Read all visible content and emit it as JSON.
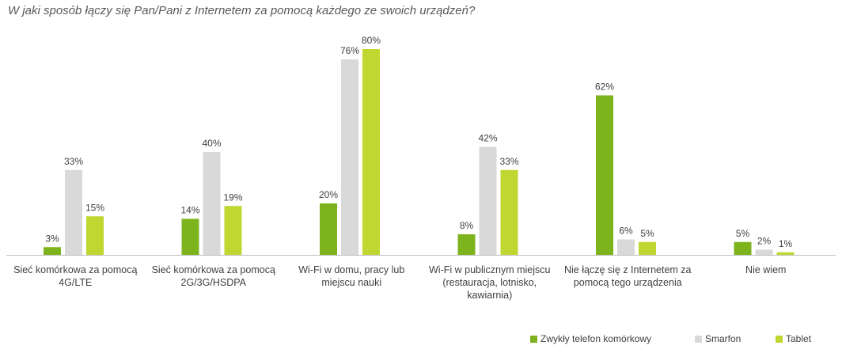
{
  "chart_data": {
    "type": "bar",
    "title": "W jaki sposób łączy się Pan/Pani z Internetem za pomocą każdego ze swoich urządzeń?",
    "categories": [
      [
        "Sieć komórkowa za pomocą",
        "4G/LTE"
      ],
      [
        "Sieć komórkowa za pomocą",
        "2G/3G/HSDPA"
      ],
      [
        "Wi-Fi w domu, pracy lub",
        "miejscu nauki"
      ],
      [
        "Wi-Fi w publicznym miejscu",
        "(restauracja, lotnisko,",
        "kawiarnia)"
      ],
      [
        "Nie łączę się z Internetem za",
        "pomocą tego urządzenia"
      ],
      [
        "Nie wiem"
      ]
    ],
    "series": [
      {
        "name": "Zwykły telefon komórkowy",
        "color": "#7db31c",
        "values": [
          3,
          14,
          20,
          8,
          62,
          5
        ],
        "labels": [
          "3%",
          "14%",
          "20%",
          "8%",
          "62%",
          "5%"
        ]
      },
      {
        "name": "Smarfon",
        "color": "#d9d9d9",
        "values": [
          33,
          40,
          76,
          42,
          6,
          2
        ],
        "labels": [
          "33%",
          "40%",
          "76%",
          "42%",
          "6%",
          "2%"
        ]
      },
      {
        "name": "Tablet",
        "color": "#bfd730",
        "values": [
          15,
          19,
          80,
          33,
          5,
          1
        ],
        "labels": [
          "15%",
          "19%",
          "80%",
          "33%",
          "5%",
          "1%"
        ]
      }
    ],
    "ylim": [
      0,
      100
    ],
    "grid": false,
    "legend_position": "bottom-right"
  }
}
